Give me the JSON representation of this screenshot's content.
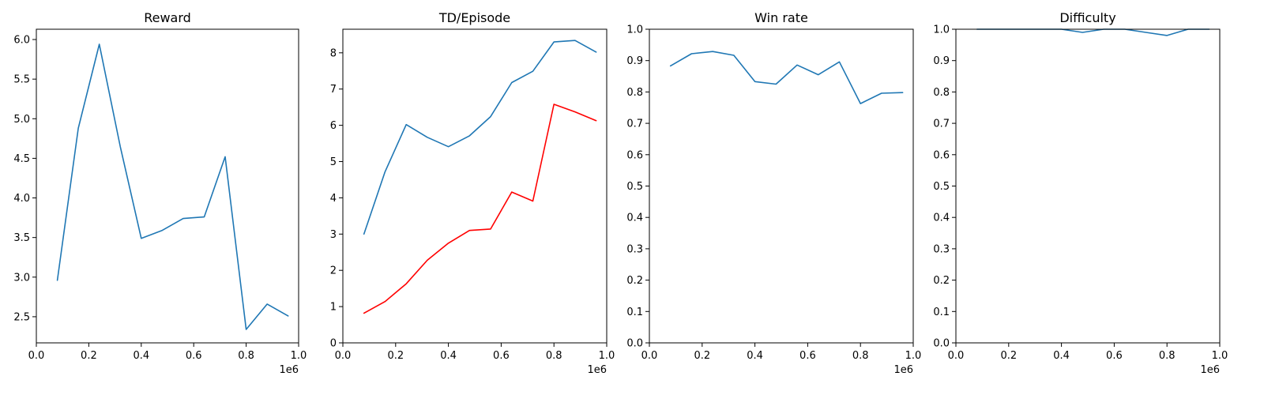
{
  "chart_data": [
    {
      "type": "line",
      "title": "Reward",
      "xlabel": "",
      "ylabel": "",
      "x_offset_label": "1e6",
      "xlim": [
        0,
        1000000
      ],
      "ylim": [
        2.17,
        6.13
      ],
      "xticks": [
        {
          "value": 0,
          "label": "0.0"
        },
        {
          "value": 200000,
          "label": "0.2"
        },
        {
          "value": 400000,
          "label": "0.4"
        },
        {
          "value": 600000,
          "label": "0.6"
        },
        {
          "value": 800000,
          "label": "0.8"
        },
        {
          "value": 1000000,
          "label": "1.0"
        }
      ],
      "yticks": [
        {
          "value": 2.5,
          "label": "2.5"
        },
        {
          "value": 3.0,
          "label": "3.0"
        },
        {
          "value": 3.5,
          "label": "3.5"
        },
        {
          "value": 4.0,
          "label": "4.0"
        },
        {
          "value": 4.5,
          "label": "4.5"
        },
        {
          "value": 5.0,
          "label": "5.0"
        },
        {
          "value": 5.5,
          "label": "5.5"
        },
        {
          "value": 6.0,
          "label": "6.0"
        }
      ],
      "grid": false,
      "series": [
        {
          "color": "#1f77b4",
          "x": [
            80000,
            160000,
            240000,
            320000,
            400000,
            480000,
            560000,
            640000,
            720000,
            800000,
            880000,
            960000
          ],
          "y": [
            2.96,
            4.88,
            5.94,
            4.65,
            3.49,
            3.59,
            3.74,
            3.76,
            4.52,
            2.34,
            2.66,
            2.51
          ]
        }
      ]
    },
    {
      "type": "line",
      "title": "TD/Episode",
      "xlabel": "",
      "ylabel": "",
      "x_offset_label": "1e6",
      "xlim": [
        0,
        1000000
      ],
      "ylim": [
        0,
        8.65
      ],
      "xticks": [
        {
          "value": 0,
          "label": "0.0"
        },
        {
          "value": 200000,
          "label": "0.2"
        },
        {
          "value": 400000,
          "label": "0.4"
        },
        {
          "value": 600000,
          "label": "0.6"
        },
        {
          "value": 800000,
          "label": "0.8"
        },
        {
          "value": 1000000,
          "label": "1.0"
        }
      ],
      "yticks": [
        {
          "value": 0,
          "label": "0"
        },
        {
          "value": 1,
          "label": "1"
        },
        {
          "value": 2,
          "label": "2"
        },
        {
          "value": 3,
          "label": "3"
        },
        {
          "value": 4,
          "label": "4"
        },
        {
          "value": 5,
          "label": "5"
        },
        {
          "value": 6,
          "label": "6"
        },
        {
          "value": 7,
          "label": "7"
        },
        {
          "value": 8,
          "label": "8"
        }
      ],
      "grid": false,
      "series": [
        {
          "color": "#1f77b4",
          "x": [
            80000,
            160000,
            240000,
            320000,
            400000,
            480000,
            560000,
            640000,
            720000,
            800000,
            880000,
            960000
          ],
          "y": [
            3.0,
            4.72,
            6.02,
            5.67,
            5.41,
            5.71,
            6.24,
            7.18,
            7.49,
            8.3,
            8.34,
            8.02
          ]
        },
        {
          "color": "#ff0000",
          "x": [
            80000,
            160000,
            240000,
            320000,
            400000,
            480000,
            560000,
            640000,
            720000,
            800000,
            880000,
            960000
          ],
          "y": [
            0.82,
            1.14,
            1.63,
            2.28,
            2.75,
            3.1,
            3.14,
            4.16,
            3.91,
            6.58,
            6.37,
            6.13
          ]
        }
      ]
    },
    {
      "type": "line",
      "title": "Win rate",
      "xlabel": "",
      "ylabel": "",
      "x_offset_label": "1e6",
      "xlim": [
        0,
        1000000
      ],
      "ylim": [
        0,
        1.0
      ],
      "xticks": [
        {
          "value": 0,
          "label": "0.0"
        },
        {
          "value": 200000,
          "label": "0.2"
        },
        {
          "value": 400000,
          "label": "0.4"
        },
        {
          "value": 600000,
          "label": "0.6"
        },
        {
          "value": 800000,
          "label": "0.8"
        },
        {
          "value": 1000000,
          "label": "1.0"
        }
      ],
      "yticks": [
        {
          "value": 0.0,
          "label": "0.0"
        },
        {
          "value": 0.1,
          "label": "0.1"
        },
        {
          "value": 0.2,
          "label": "0.2"
        },
        {
          "value": 0.3,
          "label": "0.3"
        },
        {
          "value": 0.4,
          "label": "0.4"
        },
        {
          "value": 0.5,
          "label": "0.5"
        },
        {
          "value": 0.6,
          "label": "0.6"
        },
        {
          "value": 0.7,
          "label": "0.7"
        },
        {
          "value": 0.8,
          "label": "0.8"
        },
        {
          "value": 0.9,
          "label": "0.9"
        },
        {
          "value": 1.0,
          "label": "1.0"
        }
      ],
      "grid": false,
      "series": [
        {
          "color": "#1f77b4",
          "x": [
            80000,
            160000,
            240000,
            320000,
            400000,
            480000,
            560000,
            640000,
            720000,
            800000,
            880000,
            960000
          ],
          "y": [
            0.883,
            0.922,
            0.929,
            0.917,
            0.833,
            0.825,
            0.886,
            0.855,
            0.896,
            0.763,
            0.796,
            0.798
          ]
        }
      ]
    },
    {
      "type": "line",
      "title": "Difficulty",
      "xlabel": "",
      "ylabel": "",
      "x_offset_label": "1e6",
      "xlim": [
        0,
        1000000
      ],
      "ylim": [
        0,
        1.0
      ],
      "xticks": [
        {
          "value": 0,
          "label": "0.0"
        },
        {
          "value": 200000,
          "label": "0.2"
        },
        {
          "value": 400000,
          "label": "0.4"
        },
        {
          "value": 600000,
          "label": "0.6"
        },
        {
          "value": 800000,
          "label": "0.8"
        },
        {
          "value": 1000000,
          "label": "1.0"
        }
      ],
      "yticks": [
        {
          "value": 0.0,
          "label": "0.0"
        },
        {
          "value": 0.1,
          "label": "0.1"
        },
        {
          "value": 0.2,
          "label": "0.2"
        },
        {
          "value": 0.3,
          "label": "0.3"
        },
        {
          "value": 0.4,
          "label": "0.4"
        },
        {
          "value": 0.5,
          "label": "0.5"
        },
        {
          "value": 0.6,
          "label": "0.6"
        },
        {
          "value": 0.7,
          "label": "0.7"
        },
        {
          "value": 0.8,
          "label": "0.8"
        },
        {
          "value": 0.9,
          "label": "0.9"
        },
        {
          "value": 1.0,
          "label": "1.0"
        }
      ],
      "grid": false,
      "series": [
        {
          "color": "#1f77b4",
          "x": [
            80000,
            160000,
            240000,
            320000,
            400000,
            480000,
            560000,
            640000,
            720000,
            800000,
            880000,
            960000
          ],
          "y": [
            1.0,
            1.0,
            1.0,
            1.0,
            1.0,
            0.99,
            1.0,
            1.0,
            0.99,
            0.98,
            1.0,
            1.0
          ]
        }
      ]
    }
  ]
}
